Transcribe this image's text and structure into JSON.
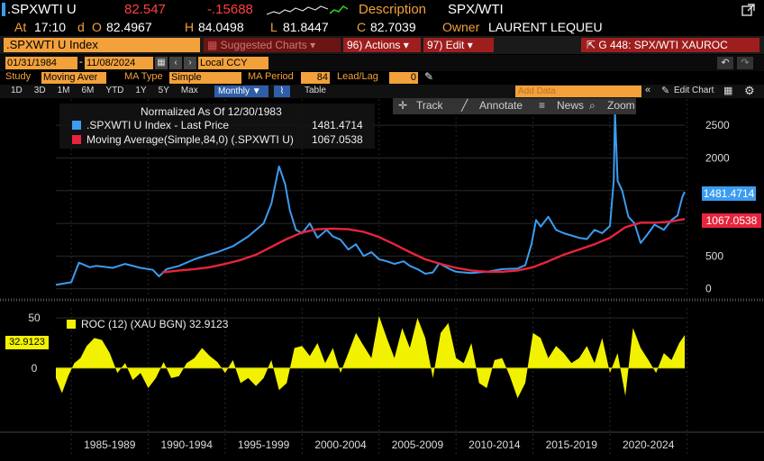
{
  "header": {
    "ticker": ".SPXWTI U",
    "last": "82.547",
    "change": "-.15688",
    "description_label": "Description",
    "description_value": "SPX/WTI",
    "at_label": "At",
    "time": "17:10",
    "d": "d",
    "open_label": "O",
    "open": "82.4967",
    "high_label": "H",
    "high": "84.0498",
    "low_label": "L",
    "low": "81.8447",
    "close_label": "C",
    "close": "82.7039",
    "owner_label": "Owner",
    "owner": "LAURENT LEQUEU"
  },
  "toolbar": {
    "security": ".SPXWTI U Index",
    "suggested": "Suggested Charts",
    "actions": "96) Actions",
    "edit": "97) Edit",
    "chart_id": "G 448: SPX/WTI XAUROC"
  },
  "range": {
    "start": "01/31/1984",
    "end": "11/08/2024",
    "currency": "Local CCY"
  },
  "study": {
    "study_label": "Study",
    "study_value": "Moving Aver",
    "ma_type_label": "MA Type",
    "ma_type_value": "Simple",
    "ma_period_label": "MA Period",
    "ma_period_value": "84",
    "leadlag_label": "Lead/Lag",
    "leadlag_value": "0"
  },
  "periods": [
    "1D",
    "3D",
    "1M",
    "6M",
    "YTD",
    "1Y",
    "5Y",
    "Max"
  ],
  "frequency": "Monthly",
  "table_label": "Table",
  "add_data_placeholder": "Add Data",
  "edit_chart_label": "Edit Chart",
  "chart_tools": [
    "Track",
    "Annotate",
    "News",
    "Zoom"
  ],
  "colors": {
    "price": "#3b9cf0",
    "ma": "#e8243c",
    "roc": "#f2f200",
    "orange": "#f3a13b",
    "background": "#000000"
  },
  "chart_data": [
    {
      "type": "line",
      "title": "Normalized As Of 12/30/1983",
      "ylim": [
        -100,
        2900
      ],
      "yticks": [
        0,
        500,
        1000,
        1500,
        2000,
        2500
      ],
      "xlim": [
        1984.0,
        2024.86
      ],
      "series": [
        {
          "name": ".SPXWTI U Index - Last Price",
          "value_label": "1481.4714",
          "x": [
            1984.0,
            1985.0,
            1985.5,
            1986.2,
            1986.6,
            1987.0,
            1987.7,
            1988.5,
            1989.5,
            1990.3,
            1990.7,
            1991.2,
            1992.0,
            1993.0,
            1993.9,
            1994.5,
            1995.5,
            1996.5,
            1997.5,
            1998.0,
            1998.5,
            1998.9,
            1999.2,
            1999.6,
            2000.0,
            2000.5,
            2001.0,
            2001.6,
            2002.0,
            2002.5,
            2003.0,
            2003.5,
            2004.0,
            2004.5,
            2005.0,
            2005.5,
            2006.0,
            2006.6,
            2007.0,
            2007.5,
            2008.0,
            2008.5,
            2008.9,
            2009.2,
            2009.6,
            2010.0,
            2011.0,
            2012.0,
            2013.0,
            2014.0,
            2014.5,
            2014.9,
            2015.2,
            2015.5,
            2016.0,
            2016.5,
            2017.0,
            2018.0,
            2018.5,
            2019.0,
            2019.5,
            2020.0,
            2020.25,
            2020.33,
            2020.5,
            2020.8,
            2021.2,
            2021.6,
            2022.0,
            2022.4,
            2022.9,
            2023.5,
            2024.0,
            2024.4,
            2024.7,
            2024.86
          ],
          "y": [
            60,
            100,
            400,
            330,
            350,
            340,
            320,
            380,
            320,
            290,
            190,
            300,
            350,
            450,
            520,
            560,
            650,
            800,
            1000,
            1300,
            1870,
            1600,
            1200,
            900,
            850,
            1000,
            780,
            900,
            800,
            750,
            600,
            680,
            500,
            560,
            450,
            420,
            380,
            420,
            350,
            300,
            230,
            250,
            390,
            350,
            300,
            260,
            240,
            260,
            300,
            310,
            360,
            680,
            1050,
            950,
            1100,
            900,
            850,
            780,
            760,
            900,
            850,
            960,
            1650,
            2700,
            1650,
            1500,
            1100,
            1000,
            700,
            820,
            980,
            900,
            1050,
            1120,
            1400,
            1481
          ]
        },
        {
          "name": "Moving Average(Simple,84,0) (.SPXWTI U)",
          "value_label": "1067.0538",
          "x": [
            1990.9,
            1992.0,
            1993.0,
            1994.0,
            1995.0,
            1996.0,
            1997.0,
            1998.0,
            1999.0,
            2000.0,
            2001.0,
            2002.0,
            2003.0,
            2004.0,
            2005.0,
            2006.0,
            2007.0,
            2008.0,
            2009.0,
            2010.0,
            2011.0,
            2012.0,
            2013.0,
            2014.0,
            2015.0,
            2016.0,
            2017.0,
            2018.0,
            2019.0,
            2020.0,
            2021.0,
            2022.0,
            2023.0,
            2024.0,
            2024.86
          ],
          "y": [
            250,
            280,
            300,
            330,
            380,
            440,
            520,
            640,
            760,
            860,
            910,
            920,
            910,
            870,
            790,
            680,
            560,
            450,
            380,
            320,
            280,
            260,
            260,
            280,
            330,
            420,
            520,
            600,
            680,
            780,
            940,
            1010,
            1010,
            1030,
            1067
          ]
        }
      ]
    },
    {
      "type": "area",
      "title": "ROC (12) (XAU BGN) 32.9123",
      "ylim": [
        -55,
        60
      ],
      "yticks": [
        0,
        50
      ],
      "value_label": "32.9123",
      "series": [
        {
          "name": "ROC (12) (XAU BGN)",
          "x": [
            1984.0,
            1984.4,
            1984.8,
            1985.2,
            1985.6,
            1986.0,
            1986.5,
            1987.0,
            1987.5,
            1988.0,
            1988.5,
            1989.0,
            1989.5,
            1990.0,
            1990.5,
            1991.0,
            1991.5,
            1992.0,
            1992.5,
            1993.0,
            1993.5,
            1994.0,
            1994.5,
            1995.0,
            1995.5,
            1996.0,
            1996.5,
            1997.0,
            1997.5,
            1998.0,
            1998.5,
            1999.0,
            1999.5,
            2000.0,
            2000.5,
            2001.0,
            2001.5,
            2002.0,
            2002.5,
            2003.0,
            2003.5,
            2004.0,
            2004.5,
            2005.0,
            2005.5,
            2006.0,
            2006.5,
            2007.0,
            2007.5,
            2008.0,
            2008.5,
            2009.0,
            2009.5,
            2010.0,
            2010.5,
            2011.0,
            2011.5,
            2012.0,
            2012.5,
            2013.0,
            2013.5,
            2014.0,
            2014.5,
            2015.0,
            2015.5,
            2016.0,
            2016.5,
            2017.0,
            2017.5,
            2018.0,
            2018.5,
            2019.0,
            2019.5,
            2020.0,
            2020.5,
            2021.0,
            2021.5,
            2022.0,
            2022.5,
            2023.0,
            2023.5,
            2024.0,
            2024.5,
            2024.86
          ],
          "y": [
            -10,
            -25,
            -8,
            5,
            10,
            22,
            30,
            28,
            15,
            -5,
            5,
            -12,
            -5,
            -20,
            -10,
            6,
            -10,
            -8,
            5,
            10,
            20,
            12,
            6,
            -5,
            8,
            -15,
            -10,
            -18,
            -10,
            8,
            -22,
            -15,
            20,
            22,
            12,
            25,
            5,
            20,
            -5,
            15,
            35,
            22,
            10,
            52,
            30,
            10,
            40,
            20,
            50,
            30,
            -10,
            35,
            45,
            10,
            5,
            25,
            -15,
            -20,
            8,
            10,
            -8,
            -30,
            -15,
            35,
            30,
            10,
            22,
            15,
            5,
            10,
            22,
            5,
            30,
            -5,
            15,
            -28,
            40,
            20,
            8,
            -5,
            15,
            8,
            25,
            33
          ]
        }
      ]
    }
  ],
  "right_axis_labels": {
    "price": "1481.4714",
    "ma": "1067.0538"
  },
  "x_axis_labels": [
    "1985-1989",
    "1990-1994",
    "1995-1999",
    "2000-2004",
    "2005-2009",
    "2010-2014",
    "2015-2019",
    "2020-2024"
  ]
}
